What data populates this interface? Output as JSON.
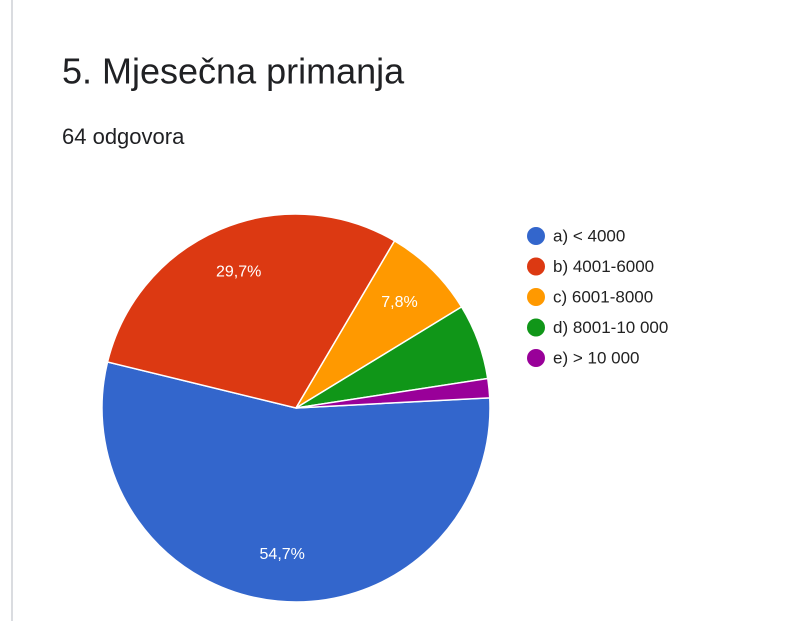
{
  "chart_data": {
    "type": "pie",
    "title": "5. Mjesečna primanja",
    "subtitle": "64 odgovora",
    "categories": [
      "a) < 4000",
      "b) 4001-6000",
      "c) 6001-8000",
      "d) 8001-10 000",
      "e) > 10 000"
    ],
    "values": [
      54.7,
      29.7,
      7.8,
      6.3,
      1.6
    ],
    "value_labels": [
      "54,7%",
      "29,7%",
      "7,8%",
      null,
      null
    ],
    "colors": [
      "#3366cc",
      "#dc3912",
      "#ff9900",
      "#109618",
      "#990099"
    ],
    "legend": "right"
  }
}
